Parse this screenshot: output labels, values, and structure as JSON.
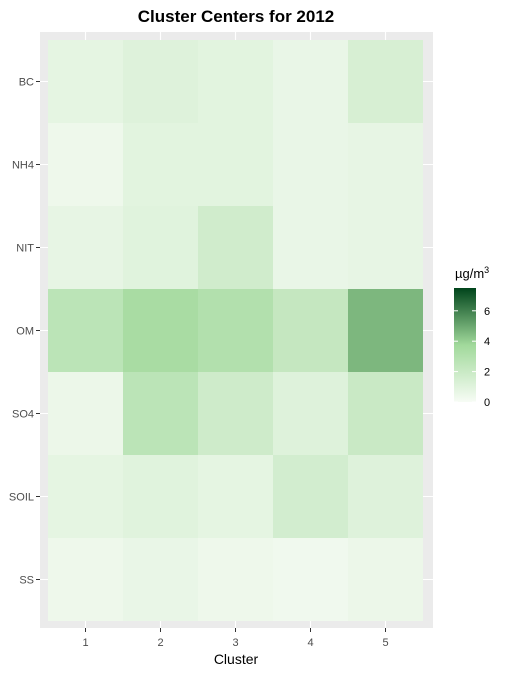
{
  "chart_data": {
    "type": "heatmap",
    "title": "Cluster Centers for 2012",
    "xlabel": "Cluster",
    "ylabel": "",
    "x_categories": [
      "1",
      "2",
      "3",
      "4",
      "5"
    ],
    "y_categories": [
      "BC",
      "NH4",
      "NIT",
      "OM",
      "SO4",
      "SOIL",
      "SS"
    ],
    "values": [
      [
        0.8,
        1.1,
        0.9,
        0.6,
        1.4
      ],
      [
        0.4,
        0.9,
        0.9,
        0.6,
        0.7
      ],
      [
        0.7,
        1.0,
        1.7,
        0.6,
        0.7
      ],
      [
        2.6,
        3.4,
        3.0,
        2.2,
        4.6
      ],
      [
        0.5,
        2.6,
        1.8,
        1.1,
        2.0
      ],
      [
        0.8,
        1.0,
        0.8,
        1.6,
        1.1
      ],
      [
        0.4,
        0.6,
        0.4,
        0.3,
        0.5
      ]
    ],
    "legend": {
      "title": "µg/m",
      "title_superscript": "3",
      "ticks": [
        "0",
        "2",
        "4",
        "6"
      ],
      "tick_values": [
        0,
        2,
        4,
        6
      ],
      "range": [
        0,
        7.5
      ],
      "low_color": "#f7fcf5",
      "high_color": "#00441b",
      "placement": "right"
    },
    "panel_background": "#ebebeb",
    "grid": true
  }
}
